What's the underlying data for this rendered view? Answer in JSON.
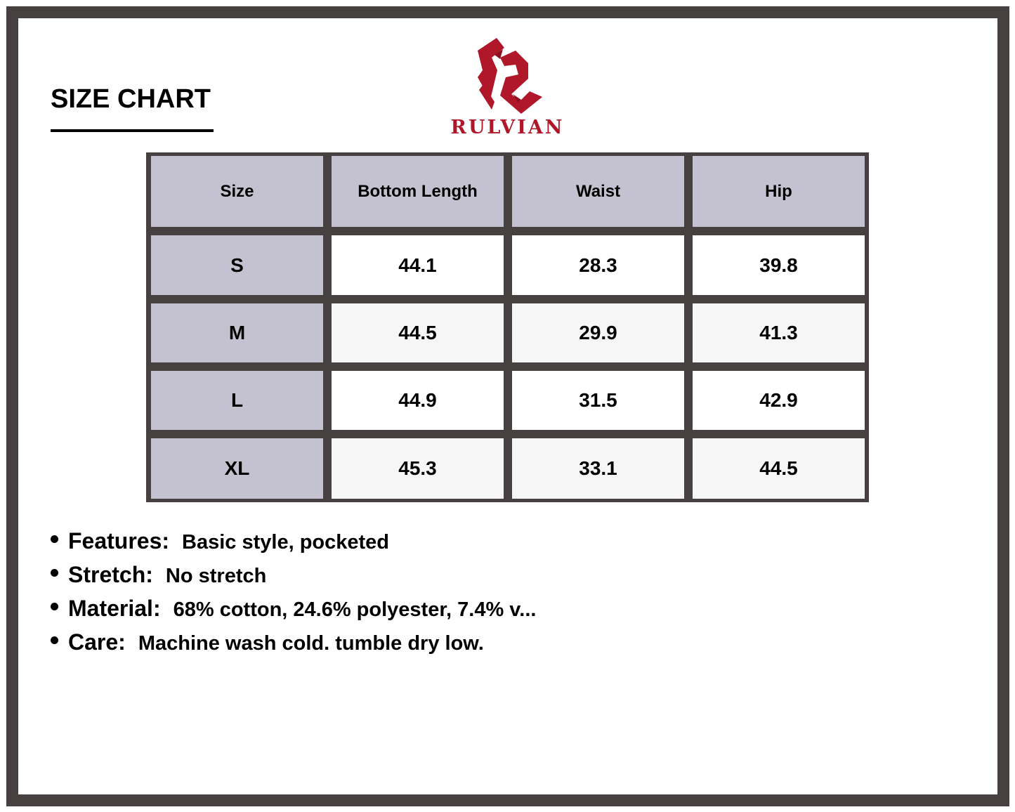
{
  "title": "SIZE CHART",
  "brand": {
    "name": "RULVIAN",
    "color": "#b0182a"
  },
  "table": {
    "headers": [
      "Size",
      "Bottom Length",
      "Waist",
      "Hip"
    ],
    "rows": [
      [
        "S",
        "44.1",
        "28.3",
        "39.8"
      ],
      [
        "M",
        "44.5",
        "29.9",
        "41.3"
      ],
      [
        "L",
        "44.9",
        "31.5",
        "42.9"
      ],
      [
        "XL",
        "45.3",
        "33.1",
        "44.5"
      ]
    ]
  },
  "notes": [
    {
      "label": "Features:",
      "value": "Basic style, pocketed"
    },
    {
      "label": "Stretch:",
      "value": "No stretch"
    },
    {
      "label": "Material:",
      "value": "68% cotton, 24.6% polyester, 7.4% v..."
    },
    {
      "label": "Care:",
      "value": "Machine wash cold. tumble dry low."
    }
  ]
}
